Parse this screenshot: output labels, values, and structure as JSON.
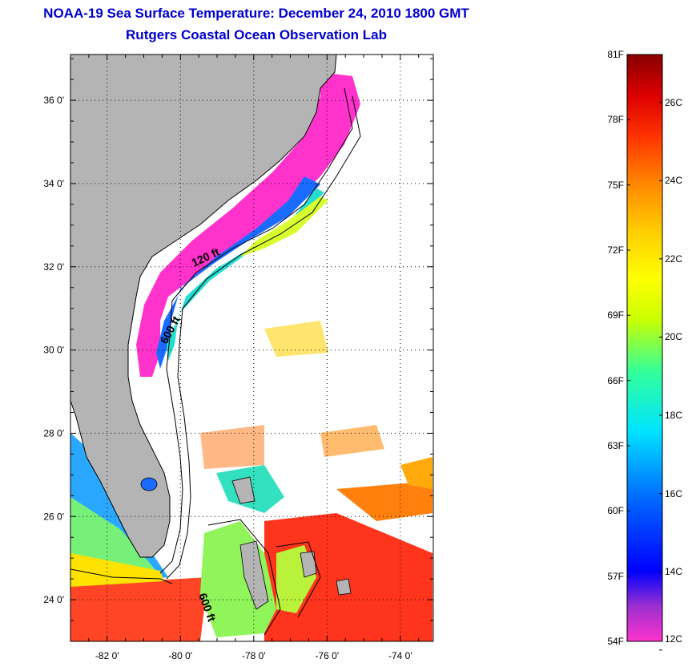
{
  "title": {
    "line1": "NOAA-19 Sea Surface Temperature:  December 24, 2010 1800 GMT",
    "line2": "Rutgers Coastal Ocean Observation Lab"
  },
  "map": {
    "lat_labels": [
      "36 0'",
      "34 0'",
      "32 0'",
      "30 0'",
      "28 0'",
      "26 0'",
      "24 0'"
    ],
    "lon_labels": [
      "-82 0'",
      "-80 0'",
      "-78 0'",
      "-76 0'",
      "-74 0'"
    ],
    "lat_range": [
      23.0,
      37.1
    ],
    "lon_range": [
      -83.0,
      -73.1
    ],
    "contour_labels": [
      "120 ft",
      "600 ft",
      "600 ft"
    ],
    "colors": {
      "land": "#b4b4b4",
      "ocean_nodata": "#ffffff",
      "coast_line": "#000000",
      "grid_dots": "#000000"
    }
  },
  "colorbar": {
    "f_labels": [
      "81F",
      "78F",
      "75F",
      "72F",
      "69F",
      "66F",
      "63F",
      "60F",
      "57F",
      "54F"
    ],
    "c_labels": [
      "26C",
      "24C",
      "22C",
      "20C",
      "18C",
      "16C",
      "14C",
      "12C"
    ],
    "range_f": [
      54,
      81
    ],
    "colors_bottom_to_top": [
      "#ff33cc",
      "#7a3fc8",
      "#0000ff",
      "#0066ff",
      "#00e5ff",
      "#33ff99",
      "#ccff00",
      "#ffff00",
      "#ffcc00",
      "#ff8800",
      "#ff3300",
      "#dd0000",
      "#880000"
    ]
  }
}
